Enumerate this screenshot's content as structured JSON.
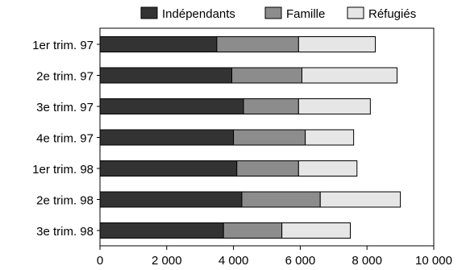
{
  "chart_data": {
    "type": "bar",
    "orientation": "horizontal",
    "stacked": true,
    "categories": [
      "1er trim. 97",
      "2e trim. 97",
      "3e trim. 97",
      "4e trim. 97",
      "1er trim. 98",
      "2e trim. 98",
      "3e trim. 98"
    ],
    "series": [
      {
        "name": "Indépendants",
        "color": "#333333",
        "values": [
          3500,
          3950,
          4300,
          4000,
          4100,
          4250,
          3700
        ]
      },
      {
        "name": "Famille",
        "color": "#8c8c8c",
        "values": [
          2450,
          2100,
          1650,
          2150,
          1850,
          2350,
          1750
        ]
      },
      {
        "name": "Réfugiés",
        "color": "#e6e6e6",
        "values": [
          2300,
          2850,
          2150,
          1450,
          1750,
          2400,
          2050
        ]
      }
    ],
    "x_ticks": [
      "0",
      "2 000",
      "4 000",
      "6 000",
      "8 000",
      "10 000"
    ],
    "xlim": [
      0,
      10000
    ],
    "legend_position": "top-right",
    "grid": false
  }
}
